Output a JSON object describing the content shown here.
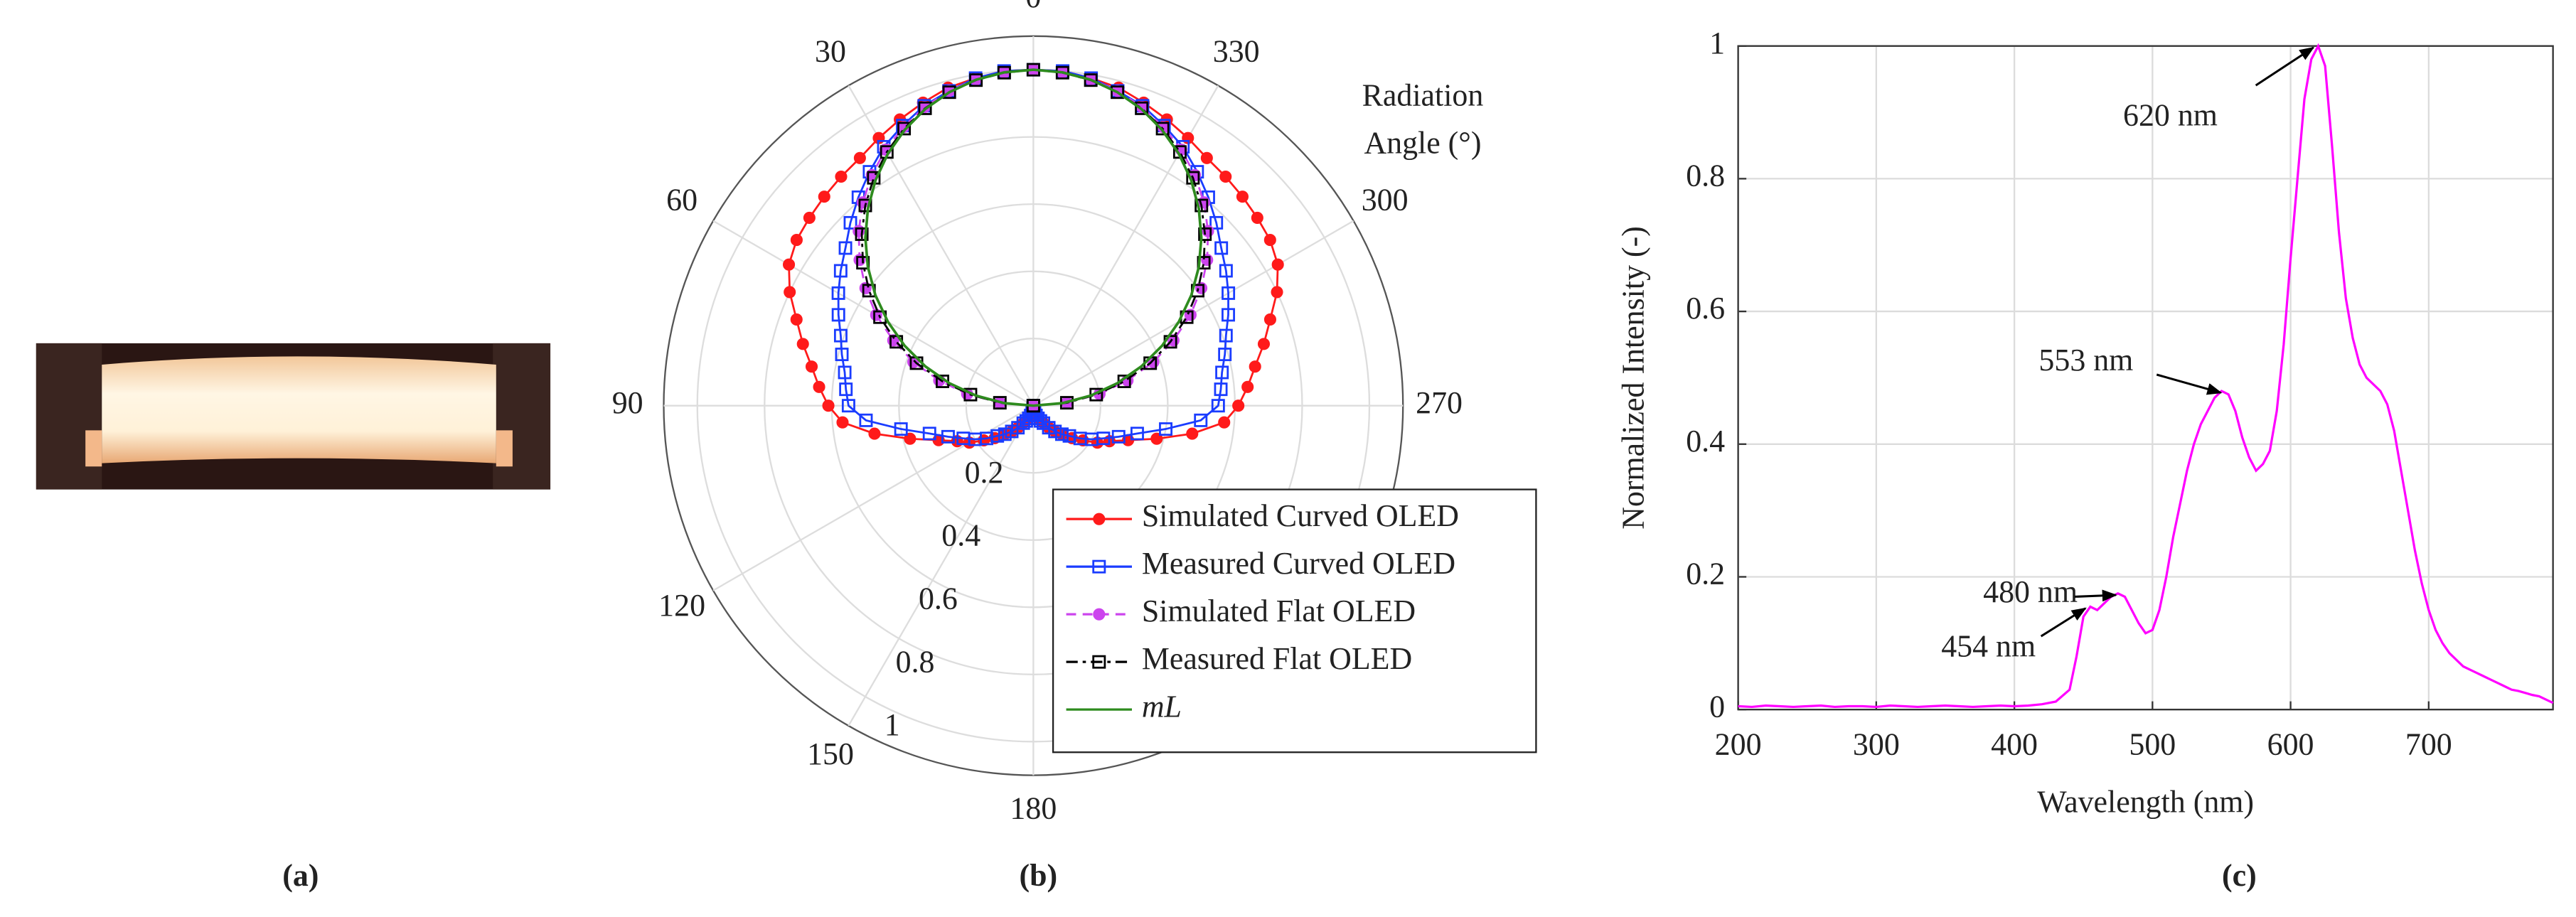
{
  "panel_labels": [
    "(a)",
    "(b)",
    "(c)"
  ],
  "chart_data": [
    {
      "type": "polar",
      "theta_label": [
        "Radiation",
        "Angle (°)"
      ],
      "rlim": [
        0,
        1.1
      ],
      "rticks": [
        0.2,
        0.4,
        0.6,
        0.8,
        1
      ],
      "thetaticks": [
        0,
        30,
        60,
        90,
        120,
        150,
        180,
        270,
        300,
        330
      ],
      "grid": true,
      "legend": "lower right",
      "series": [
        {
          "name": "Simulated Curved OLED",
          "color": "#ff1a1a",
          "marker": "circle",
          "filled": true,
          "dash": "solid",
          "theta": [
            0,
            5,
            10,
            15,
            20,
            25,
            30,
            35,
            40,
            45,
            50,
            55,
            60,
            65,
            70,
            75,
            80,
            85,
            90,
            95,
            100,
            105,
            110,
            115,
            120,
            125,
            130,
            135,
            140,
            145,
            150,
            155,
            160,
            165,
            170,
            175,
            180,
            185,
            190,
            195,
            200,
            205,
            210,
            215,
            220,
            225,
            230,
            235,
            240,
            245,
            250,
            255,
            260,
            265,
            270,
            275,
            280,
            285,
            290,
            295,
            300,
            305,
            310,
            315,
            320,
            325,
            330,
            335,
            340,
            345,
            350,
            355
          ],
          "values": [
            1.0,
            1.0,
            0.99,
            0.98,
            0.96,
            0.94,
            0.92,
            0.9,
            0.89,
            0.88,
            0.87,
            0.86,
            0.84,
            0.8,
            0.75,
            0.71,
            0.67,
            0.64,
            0.61,
            0.57,
            0.48,
            0.38,
            0.3,
            0.25,
            0.22,
            0.18,
            0.15,
            0.12,
            0.1,
            0.08,
            0.06,
            0.05,
            0.04,
            0.03,
            0.02,
            0.01,
            0,
            0.01,
            0.02,
            0.03,
            0.04,
            0.05,
            0.06,
            0.08,
            0.1,
            0.12,
            0.15,
            0.18,
            0.22,
            0.25,
            0.3,
            0.38,
            0.48,
            0.57,
            0.61,
            0.64,
            0.67,
            0.71,
            0.75,
            0.8,
            0.84,
            0.86,
            0.87,
            0.88,
            0.89,
            0.9,
            0.92,
            0.94,
            0.96,
            0.98,
            0.99,
            1.0
          ]
        },
        {
          "name": "Measured Curved OLED",
          "color": "#1a3cff",
          "marker": "square",
          "filled": false,
          "dash": "solid",
          "theta": [
            0,
            5,
            10,
            15,
            20,
            25,
            30,
            35,
            40,
            45,
            50,
            55,
            60,
            65,
            70,
            75,
            80,
            85,
            90,
            95,
            100,
            105,
            110,
            115,
            120,
            125,
            130,
            135,
            140,
            145,
            150,
            155,
            160,
            165,
            170,
            175,
            180,
            185,
            190,
            195,
            200,
            205,
            210,
            215,
            220,
            225,
            230,
            235,
            240,
            245,
            250,
            255,
            260,
            265,
            270,
            275,
            280,
            285,
            290,
            295,
            300,
            305,
            310,
            315,
            320,
            325,
            330,
            335,
            340,
            345,
            350,
            355
          ],
          "values": [
            1.0,
            1.0,
            0.99,
            0.97,
            0.95,
            0.92,
            0.89,
            0.85,
            0.81,
            0.77,
            0.73,
            0.7,
            0.67,
            0.64,
            0.61,
            0.59,
            0.57,
            0.56,
            0.55,
            0.5,
            0.4,
            0.32,
            0.27,
            0.23,
            0.2,
            0.17,
            0.14,
            0.12,
            0.1,
            0.08,
            0.06,
            0.05,
            0.04,
            0.03,
            0.02,
            0.01,
            0,
            0.01,
            0.02,
            0.03,
            0.04,
            0.05,
            0.06,
            0.08,
            0.1,
            0.12,
            0.14,
            0.17,
            0.2,
            0.23,
            0.27,
            0.32,
            0.4,
            0.5,
            0.55,
            0.56,
            0.57,
            0.59,
            0.61,
            0.64,
            0.67,
            0.7,
            0.73,
            0.77,
            0.81,
            0.85,
            0.89,
            0.92,
            0.95,
            0.97,
            0.99,
            1.0
          ]
        },
        {
          "name": "Simulated Flat OLED",
          "color": "#cc44ee",
          "marker": "circle",
          "filled": true,
          "dash": "dashed",
          "theta": [
            270,
            275,
            280,
            285,
            290,
            295,
            300,
            305,
            310,
            315,
            320,
            325,
            330,
            335,
            340,
            345,
            350,
            355,
            0,
            5,
            10,
            15,
            20,
            25,
            30,
            35,
            40,
            45,
            50,
            55,
            60,
            65,
            70,
            75,
            80,
            85,
            90
          ],
          "values": [
            0,
            0.1,
            0.2,
            0.29,
            0.38,
            0.46,
            0.54,
            0.61,
            0.675,
            0.735,
            0.79,
            0.838,
            0.88,
            0.915,
            0.946,
            0.97,
            0.986,
            0.996,
            1,
            0.996,
            0.986,
            0.97,
            0.946,
            0.915,
            0.88,
            0.838,
            0.79,
            0.735,
            0.675,
            0.61,
            0.54,
            0.46,
            0.38,
            0.29,
            0.2,
            0.1,
            0
          ]
        },
        {
          "name": "Measured Flat OLED",
          "color": "#000000",
          "marker": "square",
          "filled": false,
          "dash": "dashdot",
          "theta": [
            270,
            275,
            280,
            285,
            290,
            295,
            300,
            305,
            310,
            315,
            320,
            325,
            330,
            335,
            340,
            345,
            350,
            355,
            0,
            5,
            10,
            15,
            20,
            25,
            30,
            35,
            40,
            45,
            50,
            55,
            60,
            65,
            70,
            75,
            80,
            85,
            90
          ],
          "values": [
            0,
            0.1,
            0.19,
            0.28,
            0.37,
            0.45,
            0.527,
            0.597,
            0.662,
            0.722,
            0.778,
            0.828,
            0.872,
            0.91,
            0.942,
            0.966,
            0.984,
            0.995,
            1,
            0.995,
            0.984,
            0.966,
            0.942,
            0.91,
            0.872,
            0.828,
            0.778,
            0.722,
            0.662,
            0.597,
            0.527,
            0.45,
            0.37,
            0.28,
            0.19,
            0.1,
            0
          ]
        },
        {
          "name": "mL",
          "color": "#2e8b1e",
          "marker": "none",
          "filled": false,
          "dash": "solid",
          "theta": [
            270,
            275,
            280,
            285,
            290,
            295,
            300,
            305,
            310,
            315,
            320,
            325,
            330,
            335,
            340,
            345,
            350,
            355,
            0,
            5,
            10,
            15,
            20,
            25,
            30,
            35,
            40,
            45,
            50,
            55,
            60,
            65,
            70,
            75,
            80,
            85,
            90
          ],
          "values": [
            0,
            0.087,
            0.174,
            0.259,
            0.342,
            0.423,
            0.5,
            0.574,
            0.643,
            0.707,
            0.766,
            0.819,
            0.866,
            0.906,
            0.94,
            0.966,
            0.985,
            0.996,
            1,
            0.996,
            0.985,
            0.966,
            0.94,
            0.906,
            0.866,
            0.819,
            0.766,
            0.707,
            0.643,
            0.574,
            0.5,
            0.423,
            0.342,
            0.259,
            0.174,
            0.087,
            0
          ]
        }
      ]
    },
    {
      "type": "line",
      "xlabel": "Wavelength (nm)",
      "ylabel": "Normalized Intensity (-)",
      "xlim": [
        200,
        790
      ],
      "ylim": [
        0,
        1
      ],
      "xticks": [
        200,
        300,
        400,
        500,
        600,
        700
      ],
      "yticks": [
        0,
        0.2,
        0.4,
        0.6,
        0.8,
        1
      ],
      "grid": true,
      "series": [
        {
          "color": "#ff00ff",
          "x": [
            200,
            210,
            220,
            230,
            240,
            250,
            260,
            270,
            280,
            290,
            300,
            310,
            320,
            330,
            340,
            350,
            360,
            370,
            380,
            390,
            400,
            410,
            420,
            430,
            440,
            445,
            450,
            455,
            460,
            465,
            470,
            475,
            480,
            485,
            490,
            495,
            500,
            505,
            510,
            515,
            520,
            525,
            530,
            535,
            540,
            545,
            550,
            555,
            560,
            565,
            570,
            575,
            580,
            585,
            590,
            595,
            600,
            605,
            610,
            615,
            620,
            625,
            630,
            635,
            640,
            645,
            650,
            655,
            660,
            665,
            670,
            675,
            680,
            685,
            690,
            695,
            700,
            705,
            710,
            715,
            720,
            725,
            730,
            735,
            740,
            745,
            750,
            755,
            760,
            765,
            770,
            775,
            780,
            785,
            790
          ],
          "values": [
            0.005,
            0.004,
            0.006,
            0.005,
            0.004,
            0.005,
            0.006,
            0.004,
            0.005,
            0.005,
            0.004,
            0.006,
            0.005,
            0.004,
            0.005,
            0.006,
            0.005,
            0.004,
            0.005,
            0.006,
            0.005,
            0.006,
            0.008,
            0.012,
            0.03,
            0.08,
            0.14,
            0.155,
            0.15,
            0.16,
            0.17,
            0.175,
            0.17,
            0.15,
            0.13,
            0.115,
            0.12,
            0.15,
            0.2,
            0.26,
            0.31,
            0.36,
            0.4,
            0.43,
            0.45,
            0.47,
            0.48,
            0.475,
            0.45,
            0.41,
            0.38,
            0.36,
            0.37,
            0.39,
            0.45,
            0.55,
            0.68,
            0.8,
            0.92,
            0.98,
            1.0,
            0.97,
            0.85,
            0.72,
            0.62,
            0.56,
            0.52,
            0.5,
            0.49,
            0.48,
            0.46,
            0.42,
            0.36,
            0.3,
            0.24,
            0.19,
            0.15,
            0.12,
            0.1,
            0.085,
            0.075,
            0.065,
            0.06,
            0.055,
            0.05,
            0.045,
            0.04,
            0.035,
            0.03,
            0.028,
            0.025,
            0.022,
            0.02,
            0.015,
            0.01
          ]
        }
      ],
      "annotations": [
        {
          "text": "620 nm",
          "x": 620,
          "y": 1.0
        },
        {
          "text": "553 nm",
          "x": 553,
          "y": 0.48
        },
        {
          "text": "480 nm",
          "x": 477,
          "y": 0.175
        },
        {
          "text": "454 nm",
          "x": 455,
          "y": 0.155
        }
      ]
    }
  ]
}
